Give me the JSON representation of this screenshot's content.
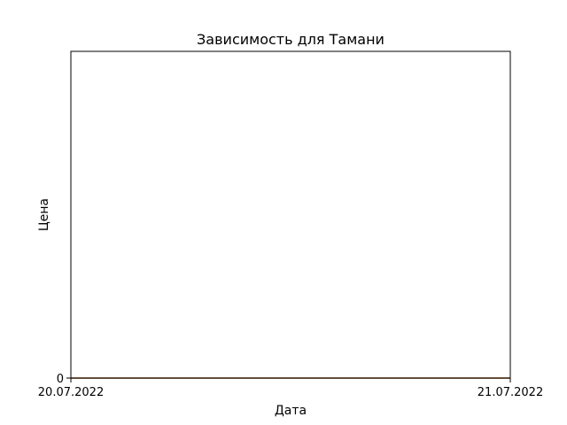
{
  "chart_data": {
    "type": "line",
    "title": "Зависимость для Тамани",
    "xlabel": "Дата",
    "ylabel": "Цена",
    "x": [
      "20.07.2022",
      "21.07.2022"
    ],
    "x_tick_labels": [
      "20.07.2022",
      "21.07.2022"
    ],
    "y_tick_labels": [
      "0"
    ],
    "y_ticks": [
      0
    ],
    "ylim": [
      0,
      1
    ],
    "grid": false,
    "series": [
      {
        "values": [
          0,
          0
        ],
        "color": "#1f77b4"
      },
      {
        "values": [
          0,
          0
        ],
        "color": "#ff7f0e"
      }
    ]
  }
}
